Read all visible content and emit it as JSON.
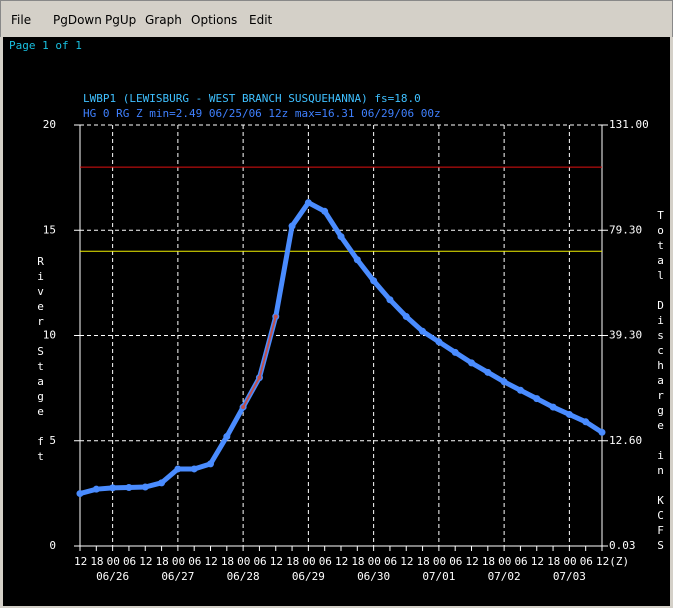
{
  "menu": [
    "File",
    "PgDown",
    "PgUp",
    "Graph",
    "Options",
    "Edit"
  ],
  "page_label": "Page 1 of 1",
  "chart_data": {
    "type": "line",
    "title": "LWBP1 (LEWISBURG - WEST BRANCH SUSQUEHANNA) fs=18.0",
    "subtitle": "HG 0 RG Z min=2.49 06/25/06 12z max=16.31 06/29/06 00z",
    "ylabel": "River Stage ft",
    "y2label": "Total Discharge in KCFS",
    "x": [
      "2006-06-25T12:00Z",
      "2006-06-25T18:00Z",
      "2006-06-26T00:00Z",
      "2006-06-26T06:00Z",
      "2006-06-26T12:00Z",
      "2006-06-26T18:00Z",
      "2006-06-27T00:00Z",
      "2006-06-27T06:00Z",
      "2006-06-27T12:00Z",
      "2006-06-27T18:00Z",
      "2006-06-28T00:00Z",
      "2006-06-28T06:00Z",
      "2006-06-28T12:00Z",
      "2006-06-28T18:00Z",
      "2006-06-29T00:00Z",
      "2006-06-29T06:00Z",
      "2006-06-29T12:00Z",
      "2006-06-29T18:00Z",
      "2006-06-30T00:00Z",
      "2006-06-30T06:00Z",
      "2006-06-30T12:00Z",
      "2006-06-30T18:00Z",
      "2006-07-01T00:00Z",
      "2006-07-01T06:00Z",
      "2006-07-01T12:00Z",
      "2006-07-01T18:00Z",
      "2006-07-02T00:00Z",
      "2006-07-02T06:00Z",
      "2006-07-02T12:00Z",
      "2006-07-02T18:00Z",
      "2006-07-03T00:00Z",
      "2006-07-03T06:00Z",
      "2006-07-03T12:00Z"
    ],
    "series": [
      {
        "color": "#4a8cff",
        "values": [
          2.49,
          2.7,
          2.76,
          2.78,
          2.8,
          3.0,
          3.66,
          3.66,
          3.9,
          5.2,
          6.6,
          8.0,
          10.9,
          15.2,
          16.31,
          15.9,
          14.7,
          13.6,
          12.6,
          11.7,
          10.9,
          10.2,
          9.7,
          9.2,
          8.7,
          8.25,
          7.8,
          7.4,
          7.0,
          6.6,
          6.25,
          5.9,
          5.4
        ]
      },
      {
        "color": "#c0504d",
        "values": [
          null,
          null,
          null,
          null,
          null,
          null,
          null,
          null,
          null,
          null,
          6.6,
          8.0,
          10.9,
          null,
          null,
          null,
          null,
          null,
          null,
          null,
          null,
          null,
          null,
          null,
          null,
          null,
          null,
          null,
          null,
          null,
          null,
          null,
          null
        ]
      }
    ],
    "thresholds": [
      {
        "value": 18,
        "color": "#e01010"
      },
      {
        "value": 14,
        "color": "#f0f000"
      }
    ],
    "xlim": [
      "2006-06-25T12:00Z",
      "2006-07-03T12:00Z"
    ],
    "xticks": [
      {
        "value": "2006-06-25T12:00Z",
        "label": "12"
      },
      {
        "value": "2006-06-25T18:00Z",
        "label": "18"
      },
      {
        "value": "2006-06-26T00:00Z",
        "label": "00"
      },
      {
        "value": "2006-06-26T06:00Z",
        "label": "06"
      },
      {
        "value": "2006-06-26T12:00Z",
        "label": "12"
      },
      {
        "value": "2006-06-26T18:00Z",
        "label": "18"
      },
      {
        "value": "2006-06-27T00:00Z",
        "label": "00"
      },
      {
        "value": "2006-06-27T06:00Z",
        "label": "06"
      },
      {
        "value": "2006-06-27T12:00Z",
        "label": "12"
      },
      {
        "value": "2006-06-27T18:00Z",
        "label": "18"
      },
      {
        "value": "2006-06-28T00:00Z",
        "label": "00"
      },
      {
        "value": "2006-06-28T06:00Z",
        "label": "06"
      },
      {
        "value": "2006-06-28T12:00Z",
        "label": "12"
      },
      {
        "value": "2006-06-28T18:00Z",
        "label": "18"
      },
      {
        "value": "2006-06-29T00:00Z",
        "label": "00"
      },
      {
        "value": "2006-06-29T06:00Z",
        "label": "06"
      },
      {
        "value": "2006-06-29T12:00Z",
        "label": "12"
      },
      {
        "value": "2006-06-29T18:00Z",
        "label": "18"
      },
      {
        "value": "2006-06-30T00:00Z",
        "label": "00"
      },
      {
        "value": "2006-06-30T06:00Z",
        "label": "06"
      },
      {
        "value": "2006-06-30T12:00Z",
        "label": "12"
      },
      {
        "value": "2006-06-30T18:00Z",
        "label": "18"
      },
      {
        "value": "2006-07-01T00:00Z",
        "label": "00"
      },
      {
        "value": "2006-07-01T06:00Z",
        "label": "06"
      },
      {
        "value": "2006-07-01T12:00Z",
        "label": "12"
      },
      {
        "value": "2006-07-01T18:00Z",
        "label": "18"
      },
      {
        "value": "2006-07-02T00:00Z",
        "label": "00"
      },
      {
        "value": "2006-07-02T06:00Z",
        "label": "06"
      },
      {
        "value": "2006-07-02T12:00Z",
        "label": "12"
      },
      {
        "value": "2006-07-02T18:00Z",
        "label": "18"
      },
      {
        "value": "2006-07-03T00:00Z",
        "label": "00"
      },
      {
        "value": "2006-07-03T06:00Z",
        "label": "06"
      },
      {
        "value": "2006-07-03T12:00Z",
        "label": "12(Z)"
      }
    ],
    "date_labels": [
      {
        "value": "2006-06-26T00:00Z",
        "label": "06/26"
      },
      {
        "value": "2006-06-27T00:00Z",
        "label": "06/27"
      },
      {
        "value": "2006-06-28T00:00Z",
        "label": "06/28"
      },
      {
        "value": "2006-06-29T00:00Z",
        "label": "06/29"
      },
      {
        "value": "2006-06-30T00:00Z",
        "label": "06/30"
      },
      {
        "value": "2006-07-01T00:00Z",
        "label": "07/01"
      },
      {
        "value": "2006-07-02T00:00Z",
        "label": "07/02"
      },
      {
        "value": "2006-07-03T00:00Z",
        "label": "07/03"
      }
    ],
    "ylim": [
      0,
      20
    ],
    "yticks": [
      20,
      15,
      10,
      5,
      0
    ],
    "y2ticks": [
      {
        "value": 131,
        "label": "131.00"
      },
      {
        "value": 79.3,
        "label": "79.30"
      },
      {
        "value": 39.3,
        "label": "39.30"
      },
      {
        "value": 12.6,
        "label": "12.60"
      },
      {
        "value": 0.03,
        "label": "0.03"
      }
    ],
    "grid": true
  }
}
